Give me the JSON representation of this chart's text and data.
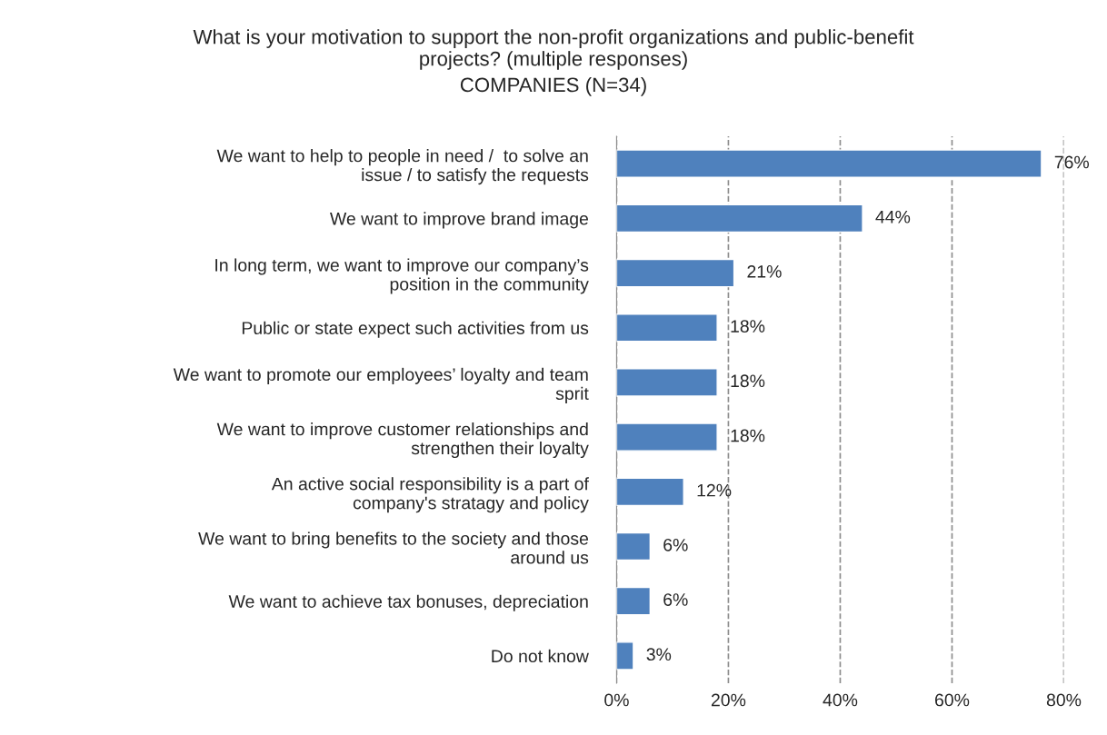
{
  "chart_data": {
    "type": "bar",
    "orientation": "horizontal",
    "title": "What is your motivation to support the non-profit organizations and public-benefit projects? (multiple responses)",
    "subtitle": "COMPANIES (N=34)",
    "categories": [
      "We want to help to people in need /  to solve an issue / to satisfy the requests",
      "We want to improve brand image",
      "In long term, we want to improve our company’s position in the community",
      "Public or state expect such activities from us",
      "We want to promote our employees’ loyalty and team sprit",
      "We want to improve customer relationships and strengthen their loyalty",
      "An active social responsibility is a part of company's stratagy and policy",
      "We want to bring benefits to the society and those around us",
      "We want to achieve tax bonuses, depreciation",
      "Do not know"
    ],
    "values": [
      76,
      44,
      21,
      18,
      18,
      18,
      12,
      6,
      6,
      3
    ],
    "value_labels": [
      "76%",
      "44%",
      "21%",
      "18%",
      "18%",
      "18%",
      "12%",
      "6%",
      "6%",
      "3%"
    ],
    "color": "#4f81bd",
    "xlim": [
      0,
      80
    ],
    "xticks": [
      {
        "value": 0,
        "label": "0%"
      },
      {
        "value": 20,
        "label": "20%"
      },
      {
        "value": 40,
        "label": "40%"
      },
      {
        "value": 60,
        "label": "60%"
      },
      {
        "value": 80,
        "label": "80%"
      }
    ],
    "grid": "x",
    "legend": false
  }
}
